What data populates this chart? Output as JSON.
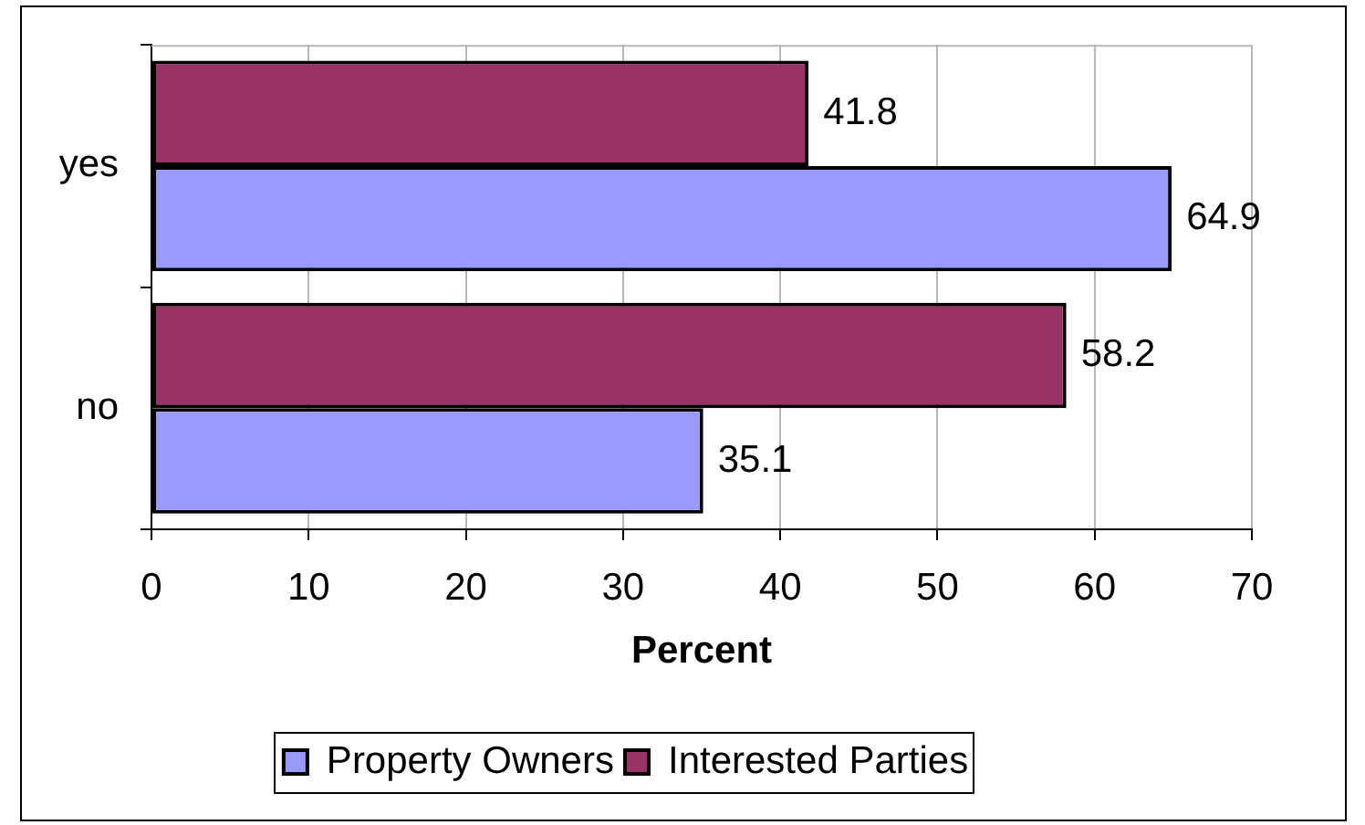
{
  "chart_data": {
    "type": "bar",
    "orientation": "horizontal",
    "categories": [
      "yes",
      "no"
    ],
    "series": [
      {
        "name": "Property Owners",
        "color": "#9999ff",
        "values": [
          64.9,
          35.1
        ]
      },
      {
        "name": "Interested Parties",
        "color": "#993366",
        "values": [
          41.8,
          58.2
        ]
      }
    ],
    "xlabel": "Percent",
    "xlim": [
      0,
      70
    ],
    "xticks": [
      0,
      10,
      20,
      30,
      40,
      50,
      60,
      70
    ],
    "grid": "x",
    "legend": "bottom",
    "data_labels": true
  }
}
